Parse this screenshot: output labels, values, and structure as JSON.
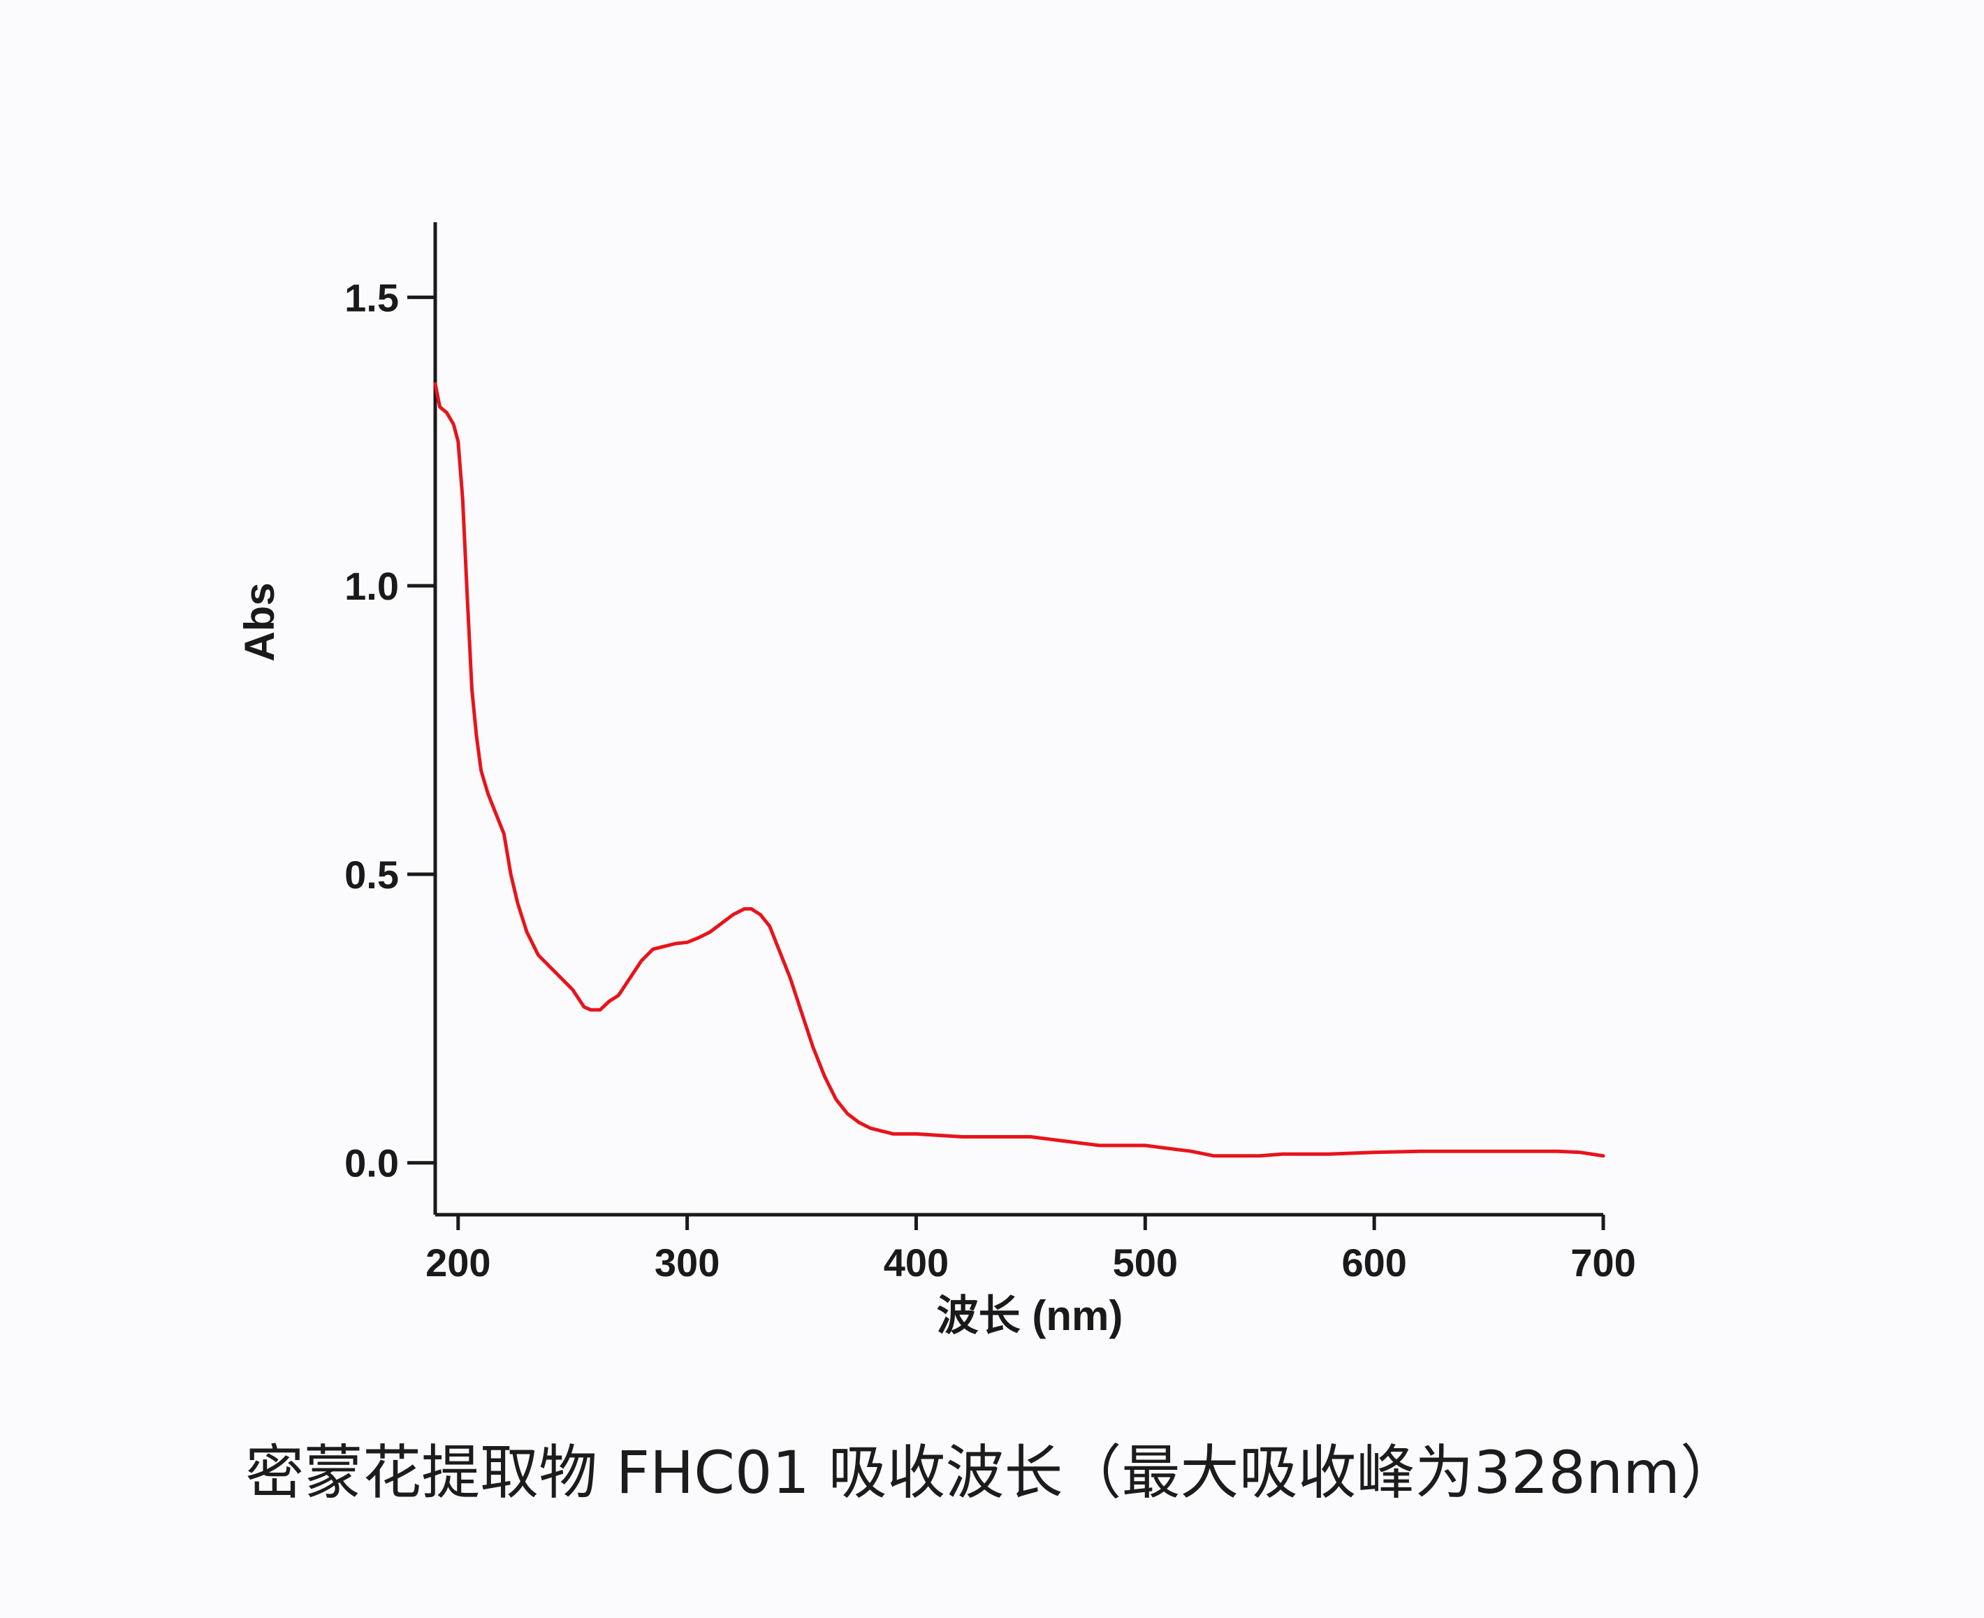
{
  "caption": "密蒙花提取物 FHC01 吸收波长（最大吸收峰为328nm）",
  "chart_data": {
    "type": "line",
    "title": "",
    "xlabel": "波长 (nm)",
    "ylabel": "Abs",
    "xlim": [
      190,
      700
    ],
    "ylim": [
      -0.09,
      1.63
    ],
    "xticks": [
      200,
      300,
      400,
      500,
      600,
      700
    ],
    "xtick_labels": [
      "200",
      "300",
      "400",
      "500",
      "600",
      "700"
    ],
    "yticks": [
      0.0,
      0.5,
      1.0,
      1.5
    ],
    "ytick_labels": [
      "0.0",
      "0.5",
      "1.0",
      "1.5"
    ],
    "grid": false,
    "legend": "none",
    "series": [
      {
        "color": "#e8141b",
        "x": [
          190,
          192,
          195,
          198,
          200,
          202,
          204,
          206,
          208,
          210,
          213,
          216,
          220,
          223,
          226,
          230,
          235,
          240,
          245,
          250,
          255,
          258,
          262,
          266,
          270,
          275,
          280,
          285,
          290,
          295,
          300,
          305,
          310,
          315,
          320,
          325,
          328,
          332,
          336,
          340,
          345,
          350,
          355,
          360,
          365,
          370,
          375,
          380,
          385,
          390,
          400,
          420,
          440,
          450,
          460,
          470,
          480,
          500,
          510,
          520,
          530,
          550,
          560,
          580,
          600,
          620,
          640,
          660,
          680,
          690,
          700
        ],
        "y": [
          1.35,
          1.31,
          1.3,
          1.28,
          1.25,
          1.15,
          0.98,
          0.82,
          0.74,
          0.68,
          0.64,
          0.61,
          0.57,
          0.5,
          0.45,
          0.4,
          0.36,
          0.34,
          0.32,
          0.3,
          0.27,
          0.265,
          0.265,
          0.28,
          0.29,
          0.32,
          0.35,
          0.37,
          0.375,
          0.38,
          0.382,
          0.39,
          0.4,
          0.415,
          0.43,
          0.44,
          0.44,
          0.43,
          0.41,
          0.37,
          0.32,
          0.26,
          0.2,
          0.15,
          0.11,
          0.085,
          0.07,
          0.06,
          0.055,
          0.05,
          0.05,
          0.045,
          0.045,
          0.045,
          0.04,
          0.035,
          0.03,
          0.03,
          0.025,
          0.02,
          0.012,
          0.012,
          0.015,
          0.015,
          0.018,
          0.02,
          0.02,
          0.02,
          0.02,
          0.018,
          0.012
        ]
      }
    ]
  }
}
